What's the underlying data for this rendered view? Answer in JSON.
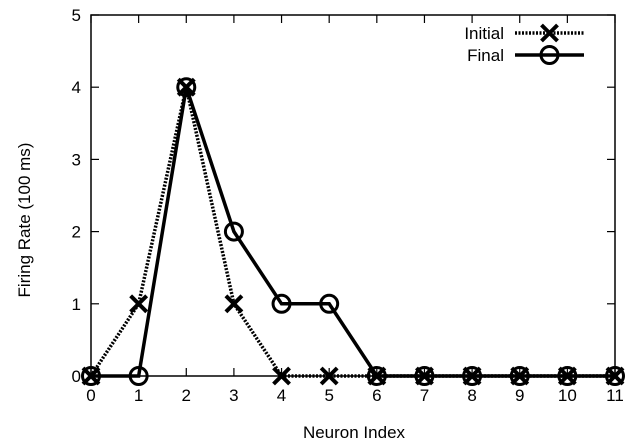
{
  "chart_data": {
    "type": "line",
    "xlabel": "Neuron Index",
    "ylabel": "Firing Rate (100 ms)",
    "xlim": [
      0,
      11
    ],
    "ylim": [
      0,
      5
    ],
    "x_ticks": [
      "0",
      "1",
      "2",
      "3",
      "4",
      "5",
      "6",
      "7",
      "8",
      "9",
      "10",
      "11"
    ],
    "y_ticks": [
      "0",
      "1",
      "2",
      "3",
      "4",
      "5"
    ],
    "grid": false,
    "legend_position": "top-right",
    "x": [
      0,
      1,
      2,
      3,
      4,
      5,
      6,
      7,
      8,
      9,
      10,
      11
    ],
    "series": [
      {
        "name": "Initial",
        "values": [
          0,
          1,
          4,
          1,
          0,
          0,
          0,
          0,
          0,
          0,
          0,
          0
        ],
        "marker": "cross",
        "line": "dotted",
        "color": "#000000"
      },
      {
        "name": "Final",
        "values": [
          0,
          0,
          4,
          2,
          1,
          1,
          0,
          0,
          0,
          0,
          0,
          0
        ],
        "marker": "circle",
        "line": "solid",
        "color": "#000000"
      }
    ]
  }
}
